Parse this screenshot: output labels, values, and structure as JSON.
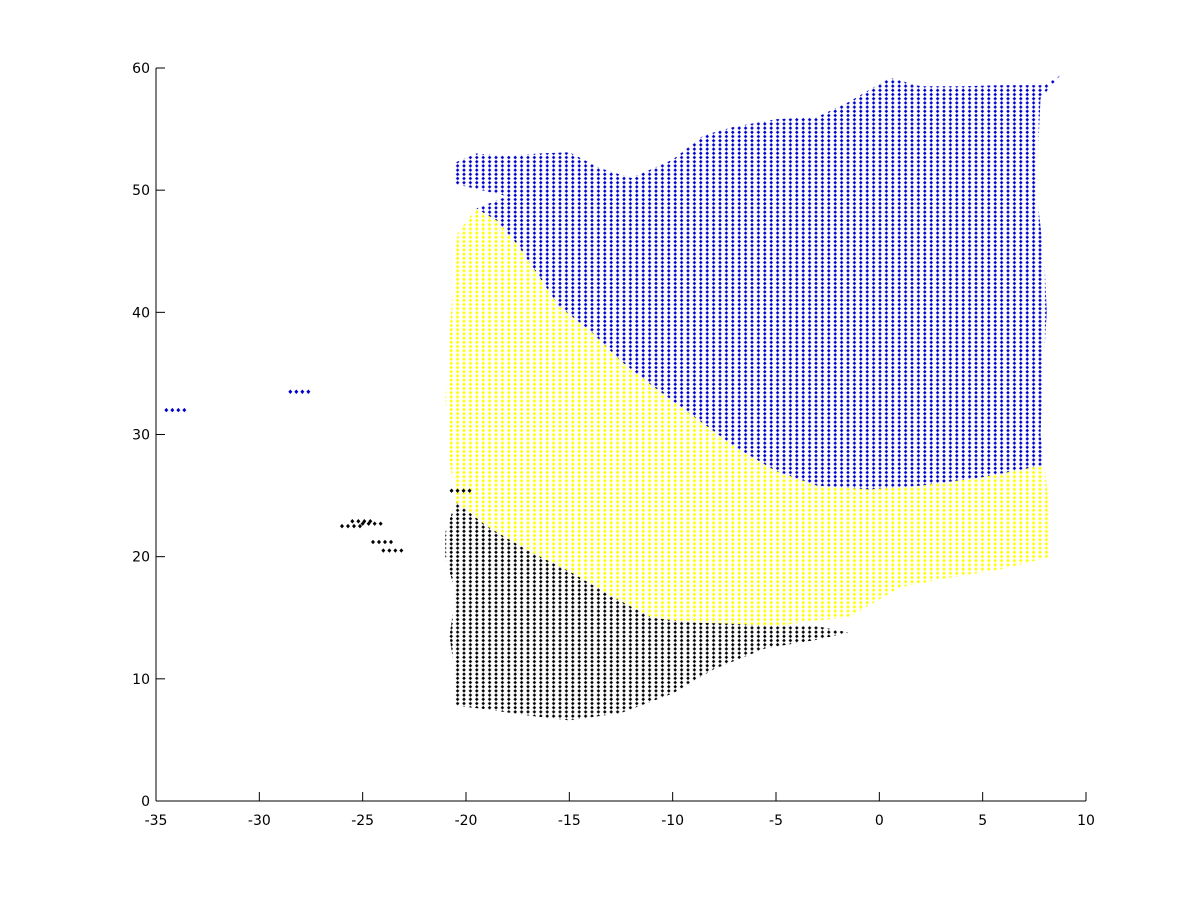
{
  "chart_data": {
    "type": "scatter",
    "title": "",
    "xlabel": "",
    "ylabel": "",
    "xlim": [
      -35,
      10
    ],
    "ylim": [
      0,
      60
    ],
    "x_ticks": [
      -35,
      -30,
      -25,
      -20,
      -15,
      -10,
      -5,
      0,
      5,
      10
    ],
    "x_tick_labels": [
      "-35",
      "-30",
      "-25",
      "-20",
      "-15",
      "-10",
      "-5",
      "0",
      "5",
      "10"
    ],
    "y_ticks": [
      0,
      10,
      20,
      30,
      40,
      50,
      60
    ],
    "y_tick_labels": [
      "0",
      "10",
      "20",
      "30",
      "40",
      "50",
      "60"
    ],
    "grid": false,
    "legend": "none",
    "marker": "diamond",
    "colors": {
      "cluster_1": "#0000cc",
      "cluster_2": "#ffff00",
      "cluster_3": "#000000"
    },
    "series": [
      {
        "color": "#0000cc",
        "region_boundary": [
          [
            -20.6,
            52.2
          ],
          [
            -19.5,
            53.0
          ],
          [
            -18.0,
            52.8
          ],
          [
            -16.5,
            53.0
          ],
          [
            -15.0,
            53.1
          ],
          [
            -13.5,
            51.8
          ],
          [
            -12.0,
            51.0
          ],
          [
            -10.0,
            52.5
          ],
          [
            -8.5,
            54.5
          ],
          [
            -7.0,
            55.2
          ],
          [
            -5.0,
            55.8
          ],
          [
            -3.0,
            56.0
          ],
          [
            -1.5,
            57.2
          ],
          [
            0.5,
            59.2
          ],
          [
            2.0,
            58.5
          ],
          [
            4.0,
            58.5
          ],
          [
            6.0,
            58.6
          ],
          [
            8.0,
            58.6
          ],
          [
            8.8,
            59.5
          ],
          [
            7.8,
            57.5
          ],
          [
            7.6,
            50.0
          ],
          [
            8.0,
            44.0
          ],
          [
            8.1,
            40.0
          ],
          [
            7.9,
            34.0
          ],
          [
            7.8,
            30.0
          ],
          [
            8.0,
            27.5
          ],
          [
            5.0,
            26.5
          ],
          [
            2.0,
            25.8
          ],
          [
            -0.5,
            25.5
          ],
          [
            -3.0,
            25.8
          ],
          [
            -5.0,
            27.0
          ],
          [
            -7.0,
            29.0
          ],
          [
            -9.0,
            31.5
          ],
          [
            -11.0,
            34.0
          ],
          [
            -12.5,
            36.0
          ],
          [
            -14.0,
            38.5
          ],
          [
            -15.5,
            40.5
          ],
          [
            -16.5,
            43.0
          ],
          [
            -17.5,
            45.5
          ],
          [
            -18.5,
            47.5
          ],
          [
            -19.5,
            48.5
          ],
          [
            -18.0,
            49.5
          ],
          [
            -20.5,
            50.5
          ]
        ],
        "points": [
          [
            -34.5,
            32.0
          ],
          [
            -28.5,
            33.5
          ]
        ]
      },
      {
        "color": "#ffff00",
        "region_boundary": [
          [
            -19.5,
            48.5
          ],
          [
            -18.5,
            47.5
          ],
          [
            -17.5,
            45.5
          ],
          [
            -16.5,
            43.0
          ],
          [
            -15.5,
            40.5
          ],
          [
            -14.0,
            38.5
          ],
          [
            -12.5,
            36.0
          ],
          [
            -11.0,
            34.0
          ],
          [
            -9.0,
            31.5
          ],
          [
            -7.0,
            29.0
          ],
          [
            -5.0,
            27.0
          ],
          [
            -3.0,
            25.8
          ],
          [
            -0.5,
            25.5
          ],
          [
            2.0,
            25.8
          ],
          [
            5.0,
            26.5
          ],
          [
            8.0,
            27.5
          ],
          [
            8.2,
            24.0
          ],
          [
            8.3,
            20.0
          ],
          [
            6.0,
            19.0
          ],
          [
            3.5,
            18.3
          ],
          [
            1.0,
            17.5
          ],
          [
            -1.5,
            15.0
          ],
          [
            -3.0,
            14.8
          ],
          [
            -5.0,
            14.3
          ],
          [
            -7.0,
            14.5
          ],
          [
            -9.0,
            14.6
          ],
          [
            -11.0,
            15.0
          ],
          [
            -13.0,
            16.8
          ],
          [
            -15.0,
            18.8
          ],
          [
            -17.0,
            20.5
          ],
          [
            -19.0,
            22.5
          ],
          [
            -20.5,
            24.5
          ],
          [
            -20.8,
            28.0
          ],
          [
            -21.0,
            33.0
          ],
          [
            -20.8,
            38.0
          ],
          [
            -20.6,
            43.0
          ],
          [
            -20.4,
            46.5
          ]
        ],
        "points": []
      },
      {
        "color": "#000000",
        "region_boundary": [
          [
            -20.5,
            24.5
          ],
          [
            -19.0,
            22.5
          ],
          [
            -17.0,
            20.5
          ],
          [
            -15.0,
            18.8
          ],
          [
            -13.0,
            16.8
          ],
          [
            -11.0,
            15.0
          ],
          [
            -9.0,
            14.6
          ],
          [
            -7.0,
            14.5
          ],
          [
            -5.0,
            14.3
          ],
          [
            -3.0,
            14.3
          ],
          [
            -1.5,
            13.8
          ],
          [
            -3.0,
            13.2
          ],
          [
            -5.5,
            12.5
          ],
          [
            -8.0,
            10.8
          ],
          [
            -10.0,
            8.8
          ],
          [
            -12.5,
            7.2
          ],
          [
            -15.0,
            6.6
          ],
          [
            -17.0,
            7.0
          ],
          [
            -19.0,
            7.5
          ],
          [
            -20.5,
            7.8
          ],
          [
            -20.5,
            10.0
          ],
          [
            -20.8,
            13.5
          ],
          [
            -20.5,
            17.0
          ],
          [
            -21.0,
            20.0
          ],
          [
            -21.0,
            22.0
          ]
        ],
        "points": [
          [
            -26.0,
            22.5
          ],
          [
            -25.5,
            22.9
          ],
          [
            -25.0,
            22.7
          ],
          [
            -24.5,
            21.2
          ],
          [
            -24.0,
            20.5
          ],
          [
            -20.7,
            25.4
          ]
        ]
      }
    ]
  }
}
